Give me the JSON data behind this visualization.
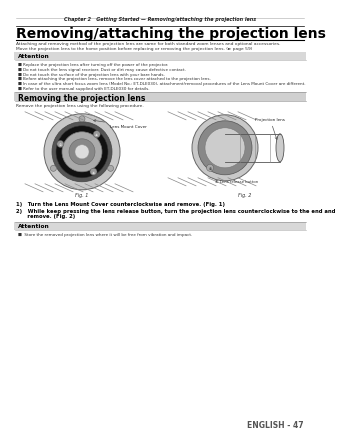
{
  "bg_color": "#ffffff",
  "header_text": "Chapter 2   Getting Started — Removing/attaching the projection lens",
  "title": "Removing/attaching the projection lens",
  "subtitle_line1": "Attaching and removing method of the projection lens are same for both standard zoom lenses and optional accessories.",
  "subtitle_line2": "Move the projection lens to the home position before replacing or removing the projection lens. (► page 59)",
  "attention_label": "Attention",
  "attention_items": [
    "Replace the projection lens after turning off the power of the projector.",
    "Do not touch the lens signal receiver. Dust or dirt may cause defective contact.",
    "Do not touch the surface of the projection lens with your bare hands.",
    "Before attaching the projection lens, remove the lens cover attached to the projection lens.",
    "In case of the ultra short focus zoom lens (Model No.: ET-DLE030), attachment/removal procedures of the Lens Mount Cover are different.",
    "Refer to the user manual supplied with ET-DLE030 for details."
  ],
  "section_title": "Removing the projection lens",
  "section_intro": "Remove the projection lens using the following procedure.",
  "fig1_label": "Fig. 1",
  "fig2_label": "Fig. 2",
  "lens_mount_cover_label": "Lens Mount Cover",
  "projection_lens_label": "Projection lens",
  "lens_release_label": "④ Lens release button",
  "step1": "1)   Turn the Lens Mount Cover counterclockwise and remove. (Fig. 1)",
  "step2a": "2)   While keep pressing the lens release button, turn the projection lens counterclockwise to the end and",
  "step2b": "      remove. (Fig. 2)",
  "attention2_label": "Attention",
  "attention2_item": "■  Store the removed projection lens where it will be free from vibration and impact.",
  "footer": "ENGLISH - 47"
}
